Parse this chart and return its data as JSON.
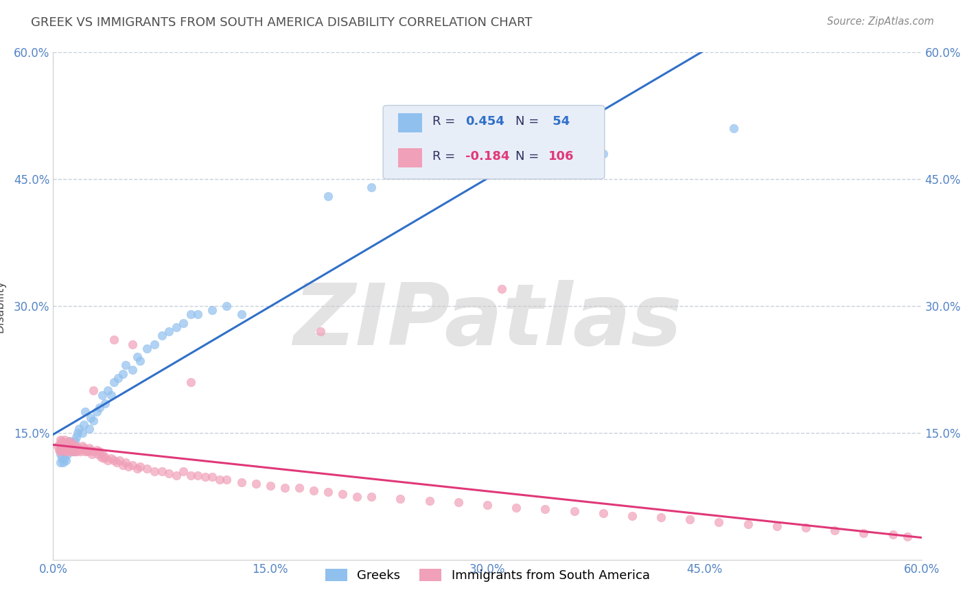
{
  "title": "GREEK VS IMMIGRANTS FROM SOUTH AMERICA DISABILITY CORRELATION CHART",
  "source": "Source: ZipAtlas.com",
  "ylabel": "Disability",
  "xlim": [
    0.0,
    0.6
  ],
  "ylim": [
    0.0,
    0.6
  ],
  "xtick_vals": [
    0.0,
    0.15,
    0.3,
    0.45,
    0.6
  ],
  "xtick_labels": [
    "0.0%",
    "15.0%",
    "30.0%",
    "45.0%",
    "60.0%"
  ],
  "ytick_vals": [
    0.0,
    0.15,
    0.3,
    0.45,
    0.6
  ],
  "ytick_labels_left": [
    "",
    "15.0%",
    "30.0%",
    "45.0%",
    "60.0%"
  ],
  "ytick_labels_right": [
    "",
    "15.0%",
    "30.0%",
    "45.0%",
    "60.0%"
  ],
  "background_color": "#ffffff",
  "watermark_text": "ZIPatlas",
  "blue_scatter_color": "#90C0EE",
  "pink_scatter_color": "#F0A0B8",
  "blue_line_color": "#3070C8",
  "pink_line_color": "#E03878",
  "title_color": "#505050",
  "ylabel_color": "#505050",
  "tick_color": "#5585C5",
  "grid_color": "#C8D0DC",
  "legend_box_color": "#E8EEF8",
  "legend_border_color": "#C0CCDC",
  "greek_x": [
    0.005,
    0.005,
    0.005,
    0.006,
    0.006,
    0.007,
    0.007,
    0.008,
    0.008,
    0.009,
    0.01,
    0.01,
    0.011,
    0.012,
    0.013,
    0.014,
    0.015,
    0.016,
    0.017,
    0.018,
    0.02,
    0.021,
    0.022,
    0.025,
    0.026,
    0.028,
    0.03,
    0.032,
    0.034,
    0.036,
    0.038,
    0.04,
    0.042,
    0.045,
    0.048,
    0.05,
    0.055,
    0.058,
    0.06,
    0.065,
    0.07,
    0.075,
    0.08,
    0.085,
    0.09,
    0.095,
    0.1,
    0.11,
    0.12,
    0.13,
    0.19,
    0.22,
    0.38,
    0.47
  ],
  "greek_y": [
    0.115,
    0.125,
    0.13,
    0.12,
    0.135,
    0.115,
    0.128,
    0.12,
    0.132,
    0.118,
    0.125,
    0.138,
    0.14,
    0.13,
    0.135,
    0.128,
    0.14,
    0.145,
    0.15,
    0.155,
    0.15,
    0.16,
    0.175,
    0.155,
    0.168,
    0.165,
    0.175,
    0.18,
    0.195,
    0.185,
    0.2,
    0.195,
    0.21,
    0.215,
    0.22,
    0.23,
    0.225,
    0.24,
    0.235,
    0.25,
    0.255,
    0.265,
    0.27,
    0.275,
    0.28,
    0.29,
    0.29,
    0.295,
    0.3,
    0.29,
    0.43,
    0.44,
    0.48,
    0.51
  ],
  "sa_x": [
    0.003,
    0.004,
    0.005,
    0.005,
    0.005,
    0.006,
    0.006,
    0.007,
    0.007,
    0.008,
    0.008,
    0.008,
    0.009,
    0.009,
    0.01,
    0.01,
    0.01,
    0.011,
    0.011,
    0.012,
    0.012,
    0.013,
    0.013,
    0.014,
    0.014,
    0.015,
    0.015,
    0.016,
    0.016,
    0.017,
    0.018,
    0.019,
    0.02,
    0.021,
    0.022,
    0.023,
    0.024,
    0.025,
    0.026,
    0.027,
    0.028,
    0.03,
    0.031,
    0.032,
    0.033,
    0.034,
    0.035,
    0.036,
    0.038,
    0.04,
    0.042,
    0.044,
    0.046,
    0.048,
    0.05,
    0.052,
    0.055,
    0.058,
    0.06,
    0.065,
    0.07,
    0.075,
    0.08,
    0.085,
    0.09,
    0.095,
    0.1,
    0.105,
    0.11,
    0.115,
    0.12,
    0.13,
    0.14,
    0.15,
    0.16,
    0.17,
    0.18,
    0.19,
    0.2,
    0.21,
    0.22,
    0.24,
    0.26,
    0.28,
    0.3,
    0.32,
    0.34,
    0.36,
    0.38,
    0.4,
    0.42,
    0.44,
    0.46,
    0.48,
    0.5,
    0.52,
    0.54,
    0.56,
    0.58,
    0.59,
    0.31,
    0.185,
    0.095,
    0.055,
    0.042,
    0.028
  ],
  "sa_y": [
    0.135,
    0.13,
    0.138,
    0.142,
    0.128,
    0.132,
    0.14,
    0.135,
    0.138,
    0.13,
    0.138,
    0.142,
    0.128,
    0.135,
    0.132,
    0.138,
    0.128,
    0.135,
    0.14,
    0.13,
    0.135,
    0.128,
    0.138,
    0.13,
    0.135,
    0.128,
    0.132,
    0.135,
    0.128,
    0.132,
    0.13,
    0.128,
    0.135,
    0.132,
    0.128,
    0.13,
    0.128,
    0.132,
    0.13,
    0.125,
    0.128,
    0.13,
    0.125,
    0.128,
    0.122,
    0.125,
    0.12,
    0.122,
    0.118,
    0.12,
    0.118,
    0.115,
    0.118,
    0.112,
    0.115,
    0.11,
    0.112,
    0.108,
    0.11,
    0.108,
    0.105,
    0.105,
    0.102,
    0.1,
    0.105,
    0.1,
    0.1,
    0.098,
    0.098,
    0.095,
    0.095,
    0.092,
    0.09,
    0.088,
    0.085,
    0.085,
    0.082,
    0.08,
    0.078,
    0.075,
    0.075,
    0.072,
    0.07,
    0.068,
    0.065,
    0.062,
    0.06,
    0.058,
    0.055,
    0.052,
    0.05,
    0.048,
    0.045,
    0.042,
    0.04,
    0.038,
    0.035,
    0.032,
    0.03,
    0.028,
    0.32,
    0.27,
    0.21,
    0.255,
    0.26,
    0.2
  ]
}
